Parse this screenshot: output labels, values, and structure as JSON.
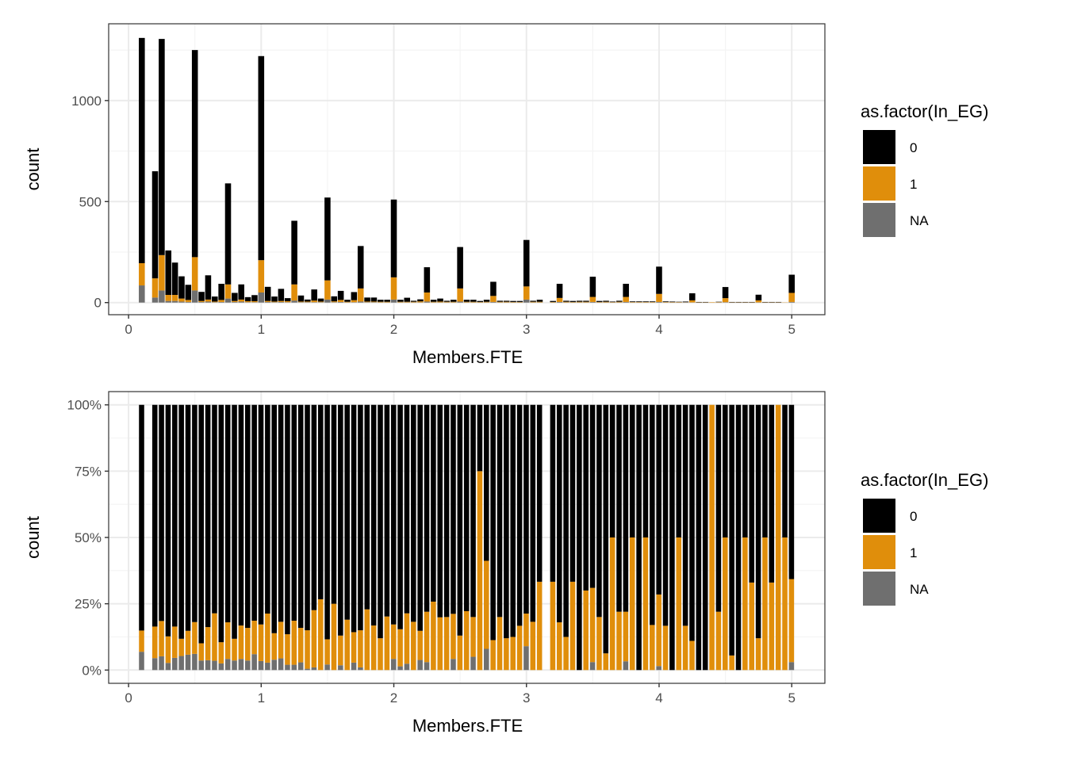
{
  "chart_data": [
    {
      "type": "bar",
      "stacked": true,
      "position": "stack",
      "title": "",
      "xlabel": "Members.FTE",
      "ylabel": "count",
      "xlim": [
        -0.15,
        5.25
      ],
      "ylim": [
        -60,
        1380
      ],
      "x_ticks": [
        0,
        1,
        2,
        3,
        4,
        5
      ],
      "x_tick_labels": [
        "0",
        "1",
        "2",
        "3",
        "4",
        "5"
      ],
      "y_ticks": [
        0,
        500,
        1000
      ],
      "y_tick_labels": [
        "0",
        "500",
        "1000"
      ],
      "y_minor_ticks": [
        250,
        750,
        1250
      ],
      "x_minor_ticks": [
        0.5,
        1.5,
        2.5,
        3.5,
        4.5
      ],
      "grid": true,
      "bin_width": 0.05,
      "x": [
        0.1,
        0.2,
        0.25,
        0.3,
        0.35,
        0.4,
        0.45,
        0.5,
        0.55,
        0.6,
        0.65,
        0.7,
        0.75,
        0.8,
        0.85,
        0.9,
        0.95,
        1.0,
        1.05,
        1.1,
        1.15,
        1.2,
        1.25,
        1.3,
        1.35,
        1.4,
        1.45,
        1.5,
        1.55,
        1.6,
        1.65,
        1.7,
        1.75,
        1.8,
        1.85,
        1.9,
        1.95,
        2.0,
        2.05,
        2.1,
        2.15,
        2.2,
        2.25,
        2.3,
        2.35,
        2.4,
        2.45,
        2.5,
        2.55,
        2.6,
        2.65,
        2.7,
        2.75,
        2.8,
        2.85,
        2.9,
        2.95,
        3.0,
        3.05,
        3.1,
        3.15,
        3.2,
        3.25,
        3.3,
        3.35,
        3.4,
        3.45,
        3.5,
        3.55,
        3.6,
        3.65,
        3.7,
        3.75,
        3.8,
        3.85,
        3.9,
        3.95,
        4.0,
        4.05,
        4.1,
        4.15,
        4.2,
        4.25,
        4.3,
        4.35,
        4.4,
        4.45,
        4.5,
        4.55,
        4.6,
        4.65,
        4.7,
        4.75,
        4.8,
        4.85,
        4.9,
        4.95,
        5.0
      ],
      "series": [
        {
          "name": "0",
          "color": "#000000",
          "values": [
            1115,
            530,
            1070,
            220,
            160,
            110,
            75,
            1025,
            45,
            120,
            25,
            80,
            500,
            40,
            75,
            20,
            30,
            1010,
            70,
            25,
            60,
            15,
            315,
            30,
            10,
            55,
            15,
            410,
            25,
            45,
            10,
            40,
            210,
            20,
            20,
            10,
            10,
            385,
            10,
            20,
            5,
            10,
            125,
            10,
            15,
            5,
            10,
            205,
            10,
            10,
            5,
            10,
            70,
            5,
            5,
            5,
            5,
            230,
            5,
            10,
            0,
            5,
            70,
            5,
            5,
            5,
            5,
            100,
            5,
            5,
            3,
            5,
            65,
            3,
            3,
            3,
            3,
            135,
            3,
            3,
            2,
            3,
            35,
            2,
            2,
            0,
            2,
            55,
            2,
            2,
            2,
            2,
            28,
            2,
            2,
            2,
            0,
            90
          ]
        },
        {
          "name": "1",
          "color": "#E08E0B",
          "values": [
            110,
            95,
            175,
            30,
            30,
            15,
            10,
            165,
            5,
            10,
            3,
            10,
            70,
            5,
            10,
            5,
            5,
            160,
            5,
            3,
            5,
            5,
            80,
            3,
            3,
            8,
            3,
            95,
            4,
            10,
            3,
            10,
            65,
            3,
            3,
            3,
            3,
            110,
            3,
            3,
            3,
            5,
            45,
            3,
            4,
            3,
            3,
            65,
            3,
            3,
            2,
            3,
            30,
            3,
            3,
            2,
            2,
            65,
            3,
            3,
            0,
            2,
            20,
            3,
            2,
            3,
            3,
            25,
            2,
            3,
            2,
            3,
            25,
            2,
            2,
            2,
            2,
            40,
            2,
            2,
            2,
            1,
            10,
            1,
            1,
            2,
            2,
            20,
            1,
            1,
            1,
            1,
            10,
            1,
            1,
            1,
            1,
            45
          ]
        },
        {
          "name": "NA",
          "color": "#6F6F6F",
          "values": [
            85,
            25,
            60,
            8,
            8,
            5,
            3,
            60,
            3,
            5,
            2,
            3,
            20,
            3,
            5,
            2,
            2,
            50,
            3,
            2,
            3,
            2,
            10,
            2,
            2,
            2,
            2,
            15,
            2,
            3,
            1,
            2,
            5,
            2,
            2,
            1,
            1,
            15,
            1,
            1,
            1,
            1,
            5,
            1,
            1,
            1,
            1,
            5,
            1,
            1,
            1,
            1,
            3,
            1,
            1,
            1,
            1,
            15,
            1,
            1,
            0,
            1,
            3,
            1,
            1,
            1,
            1,
            3,
            1,
            1,
            0,
            1,
            3,
            1,
            1,
            1,
            1,
            3,
            1,
            0,
            0,
            1,
            1,
            0,
            0,
            0,
            0,
            2,
            0,
            0,
            0,
            0,
            1,
            0,
            0,
            0,
            0,
            3
          ]
        }
      ]
    },
    {
      "type": "bar",
      "stacked": true,
      "position": "fill",
      "title": "",
      "xlabel": "Members.FTE",
      "ylabel": "count",
      "xlim": [
        -0.15,
        5.25
      ],
      "ylim": [
        -0.05,
        1.05
      ],
      "x_ticks": [
        0,
        1,
        2,
        3,
        4,
        5
      ],
      "x_tick_labels": [
        "0",
        "1",
        "2",
        "3",
        "4",
        "5"
      ],
      "y_ticks": [
        0,
        0.25,
        0.5,
        0.75,
        1.0
      ],
      "y_tick_labels": [
        "0%",
        "25%",
        "50%",
        "75%",
        "100%"
      ],
      "y_minor_ticks": [
        0.125,
        0.375,
        0.625,
        0.875
      ],
      "x_minor_ticks": [
        0.5,
        1.5,
        2.5,
        3.5,
        4.5
      ],
      "grid": true,
      "bin_width": 0.05,
      "x": [
        0.1,
        0.2,
        0.25,
        0.3,
        0.35,
        0.4,
        0.45,
        0.5,
        0.55,
        0.6,
        0.65,
        0.7,
        0.75,
        0.8,
        0.85,
        0.9,
        0.95,
        1.0,
        1.05,
        1.1,
        1.15,
        1.2,
        1.25,
        1.3,
        1.35,
        1.4,
        1.45,
        1.5,
        1.55,
        1.6,
        1.65,
        1.7,
        1.75,
        1.8,
        1.85,
        1.9,
        1.95,
        2.0,
        2.05,
        2.1,
        2.15,
        2.2,
        2.25,
        2.3,
        2.35,
        2.4,
        2.45,
        2.5,
        2.55,
        2.6,
        2.65,
        2.7,
        2.75,
        2.8,
        2.85,
        2.9,
        2.95,
        3.0,
        3.05,
        3.1,
        3.2,
        3.25,
        3.3,
        3.35,
        3.4,
        3.45,
        3.5,
        3.55,
        3.6,
        3.65,
        3.7,
        3.75,
        3.8,
        3.85,
        3.9,
        3.95,
        4.0,
        4.05,
        4.1,
        4.15,
        4.2,
        4.25,
        4.3,
        4.35,
        4.4,
        4.45,
        4.5,
        4.55,
        4.6,
        4.65,
        4.7,
        4.75,
        4.8,
        4.85,
        4.9,
        4.95,
        5.0
      ],
      "series": [
        {
          "name": "0",
          "color": "#000000",
          "values": [
            0.851,
            0.836,
            0.815,
            0.873,
            0.836,
            0.882,
            0.852,
            0.819,
            0.899,
            0.838,
            0.786,
            0.895,
            0.82,
            0.882,
            0.832,
            0.841,
            0.814,
            0.828,
            0.787,
            0.861,
            0.818,
            0.865,
            0.814,
            0.841,
            0.85,
            0.774,
            0.733,
            0.884,
            0.75,
            0.87,
            0.81,
            0.857,
            0.85,
            0.771,
            0.832,
            0.88,
            0.798,
            0.828,
            0.846,
            0.786,
            0.818,
            0.852,
            0.78,
            0.742,
            0.801,
            0.8,
            0.788,
            0.87,
            0.778,
            0.8,
            0.25,
            0.588,
            0.887,
            0.8,
            0.88,
            0.875,
            0.833,
            0.787,
            0.818,
            0.667,
            0.667,
            0.82,
            0.875,
            0.667,
            1.0,
            0.7,
            0.69,
            0.8,
            0.937,
            0.5,
            0.78,
            0.78,
            0.5,
            1.0,
            0.5,
            0.83,
            0.715,
            0.833,
            1.0,
            0.5,
            0.833,
            0.89,
            1.0,
            1.0,
            0.0,
            0.78,
            0.5,
            0.945,
            1.0,
            0.5,
            0.67,
            0.88,
            0.5,
            0.67,
            0.0,
            0.5,
            0.657
          ]
        },
        {
          "name": "1",
          "color": "#E08E0B",
          "values": [
            0.08,
            0.119,
            0.133,
            0.1,
            0.118,
            0.065,
            0.09,
            0.12,
            0.065,
            0.125,
            0.179,
            0.08,
            0.138,
            0.082,
            0.126,
            0.123,
            0.126,
            0.138,
            0.185,
            0.1,
            0.138,
            0.115,
            0.166,
            0.13,
            0.145,
            0.216,
            0.267,
            0.095,
            0.25,
            0.112,
            0.19,
            0.115,
            0.14,
            0.229,
            0.168,
            0.12,
            0.202,
            0.13,
            0.14,
            0.19,
            0.182,
            0.11,
            0.19,
            0.258,
            0.199,
            0.2,
            0.17,
            0.13,
            0.222,
            0.15,
            0.75,
            0.332,
            0.113,
            0.2,
            0.12,
            0.125,
            0.167,
            0.123,
            0.182,
            0.333,
            0.333,
            0.18,
            0.125,
            0.333,
            0.0,
            0.3,
            0.28,
            0.2,
            0.063,
            0.5,
            0.22,
            0.187,
            0.5,
            0.0,
            0.5,
            0.17,
            0.27,
            0.167,
            0.0,
            0.5,
            0.167,
            0.11,
            0.0,
            0.0,
            1.0,
            0.22,
            0.5,
            0.055,
            0.0,
            0.5,
            0.33,
            0.12,
            0.5,
            0.33,
            1.0,
            0.5,
            0.313
          ]
        },
        {
          "name": "NA",
          "color": "#6F6F6F",
          "values": [
            0.069,
            0.045,
            0.052,
            0.027,
            0.046,
            0.053,
            0.058,
            0.061,
            0.036,
            0.037,
            0.035,
            0.025,
            0.042,
            0.036,
            0.042,
            0.036,
            0.06,
            0.034,
            0.028,
            0.039,
            0.044,
            0.02,
            0.02,
            0.029,
            0.005,
            0.01,
            0.0,
            0.021,
            0.0,
            0.018,
            0.0,
            0.028,
            0.01,
            0.0,
            0.0,
            0.0,
            0.0,
            0.042,
            0.014,
            0.024,
            0.0,
            0.038,
            0.03,
            0.0,
            0.0,
            0.0,
            0.042,
            0.0,
            0.0,
            0.05,
            0.0,
            0.08,
            0.0,
            0.0,
            0.0,
            0.0,
            0.0,
            0.09,
            0.0,
            0.0,
            0.0,
            0.0,
            0.0,
            0.0,
            0.0,
            0.0,
            0.03,
            0.0,
            0.0,
            0.0,
            0.0,
            0.033,
            0.0,
            0.0,
            0.0,
            0.0,
            0.015,
            0.0,
            0.0,
            0.0,
            0.0,
            0.0,
            0.0,
            0.0,
            0.0,
            0.0,
            0.0,
            0.0,
            0.0,
            0.0,
            0.0,
            0.0,
            0.0,
            0.0,
            0.0,
            0.0,
            0.03
          ]
        }
      ]
    }
  ],
  "legend": {
    "title": "as.factor(In_EG)",
    "placement": "right",
    "items": [
      {
        "label": "0",
        "color": "#000000"
      },
      {
        "label": "1",
        "color": "#E08E0B"
      },
      {
        "label": "NA",
        "color": "#6F6F6F"
      }
    ]
  },
  "panel": {
    "background": "#FFFFFF",
    "border": "#333333",
    "grid_major": "#EBEBEB",
    "grid_minor": "#F4F4F4"
  }
}
